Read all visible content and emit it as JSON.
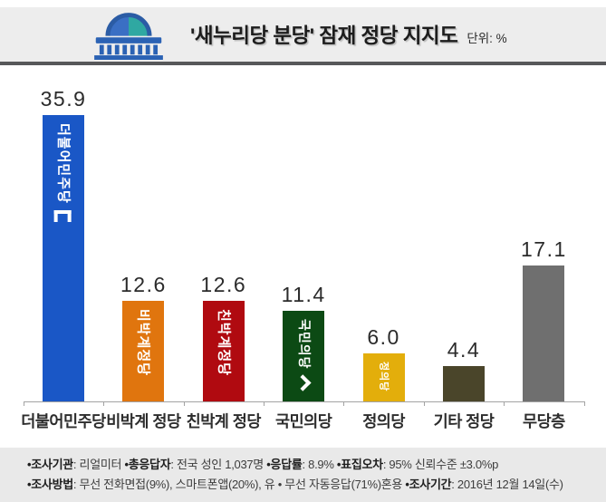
{
  "header": {
    "title": "'새누리당 분당' 잠재 정당 지지도",
    "unit_label": "단위: %",
    "logo_icon": "national-assembly-building-icon"
  },
  "chart_data": {
    "type": "bar",
    "title": "'새누리당 분당' 잠재 정당 지지도",
    "unit": "%",
    "categories": [
      "더불어민주당",
      "비박계 정당",
      "친박계 정당",
      "국민의당",
      "정의당",
      "기타 정당",
      "무당층"
    ],
    "values": [
      35.9,
      12.6,
      12.6,
      11.4,
      6.0,
      4.4,
      17.1
    ],
    "bar_colors": [
      "#1a57c6",
      "#e0750e",
      "#b00a10",
      "#0c4a14",
      "#e3ae0b",
      "#4a452a",
      "#6f6f6f"
    ],
    "inner_labels": [
      "더불어민주당",
      "비박계정당",
      "친박계정당",
      "국민의당",
      "정의당",
      "",
      ""
    ],
    "inner_logos": [
      "minjoo-party-logo",
      "",
      "",
      "peoples-party-chevron",
      "",
      "",
      ""
    ],
    "value_label_color": "#2b2b2b",
    "xlabel": "",
    "ylabel": "",
    "ylim": [
      0,
      40
    ],
    "grid": false,
    "legend": "none"
  },
  "footer": {
    "lines": [
      [
        {
          "t": "•조사기관",
          "b": true
        },
        {
          "t": ": 리얼미터  ",
          "b": false
        },
        {
          "t": "•총응답자",
          "b": true
        },
        {
          "t": ": 전국 성인 1,037명  ",
          "b": false
        },
        {
          "t": "•응답률",
          "b": true
        },
        {
          "t": ": 8.9%  ",
          "b": false
        },
        {
          "t": "•표집오차",
          "b": true
        },
        {
          "t": ": 95% 신뢰수준 ±3.0%p",
          "b": false
        }
      ],
      [
        {
          "t": "•조사방법",
          "b": true
        },
        {
          "t": ": 무선 전화면접(9%), 스마트폰앱(20%), 유 • 무선 자동응답(71%)혼용  ",
          "b": false
        },
        {
          "t": "•조사기간",
          "b": true
        },
        {
          "t": ": 2016년 12월 14일(수)",
          "b": false
        }
      ]
    ]
  }
}
